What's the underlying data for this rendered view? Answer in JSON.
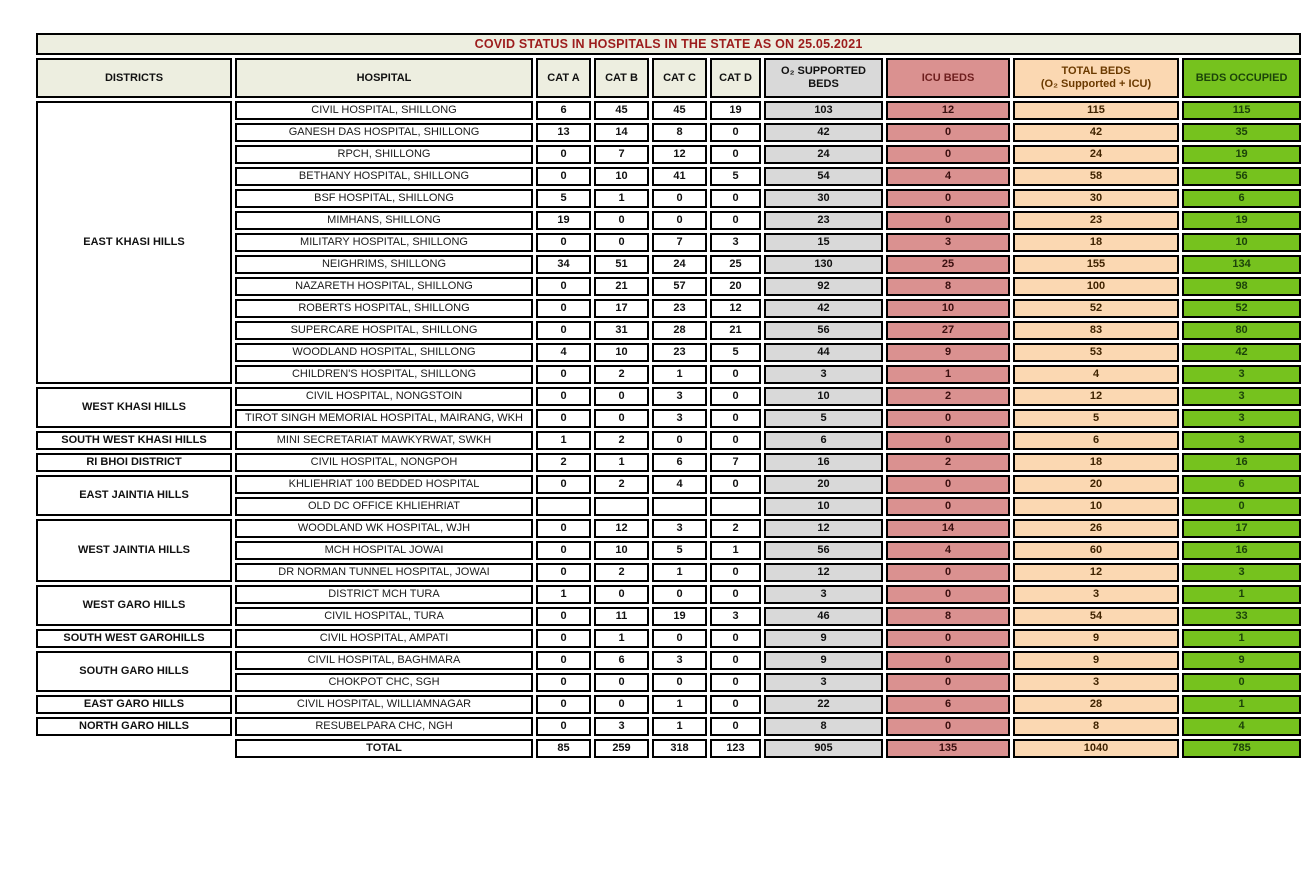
{
  "title": "COVID STATUS IN HOSPITALS IN THE STATE AS ON 25.05.2021",
  "colors": {
    "header_beige": "#EDEEE0",
    "o2_gray": "#D9D9D9",
    "icu_salmon": "#DA9190",
    "total_peach": "#FBD8B2",
    "occupied_green": "#76C21E",
    "title_text": "#9C1C1C",
    "border": "#000000"
  },
  "header": {
    "districts": "DISTRICTS",
    "hospital": "HOSPITAL",
    "cat_a": "CAT A",
    "cat_b": "CAT B",
    "cat_c": "CAT C",
    "cat_d": "CAT D",
    "o2": "O₂ SUPPORTED BEDS",
    "icu": "ICU BEDS",
    "total_line1": "TOTAL BEDS",
    "total_line2": "(O₂ Supported + ICU)",
    "occupied": "BEDS OCCUPIED"
  },
  "groups": [
    {
      "district": "EAST KHASI HILLS",
      "hospitals": [
        {
          "name": "CIVIL HOSPITAL, SHILLONG",
          "cat_a": "6",
          "cat_b": "45",
          "cat_c": "45",
          "cat_d": "19",
          "o2": "103",
          "icu": "12",
          "total": "115",
          "occupied": "115"
        },
        {
          "name": "GANESH DAS HOSPITAL, SHILLONG",
          "cat_a": "13",
          "cat_b": "14",
          "cat_c": "8",
          "cat_d": "0",
          "o2": "42",
          "icu": "0",
          "total": "42",
          "occupied": "35"
        },
        {
          "name": "RPCH, SHILLONG",
          "cat_a": "0",
          "cat_b": "7",
          "cat_c": "12",
          "cat_d": "0",
          "o2": "24",
          "icu": "0",
          "total": "24",
          "occupied": "19"
        },
        {
          "name": "BETHANY HOSPITAL, SHILLONG",
          "cat_a": "0",
          "cat_b": "10",
          "cat_c": "41",
          "cat_d": "5",
          "o2": "54",
          "icu": "4",
          "total": "58",
          "occupied": "56"
        },
        {
          "name": "BSF HOSPITAL, SHILLONG",
          "cat_a": "5",
          "cat_b": "1",
          "cat_c": "0",
          "cat_d": "0",
          "o2": "30",
          "icu": "0",
          "total": "30",
          "occupied": "6"
        },
        {
          "name": "MIMHANS, SHILLONG",
          "cat_a": "19",
          "cat_b": "0",
          "cat_c": "0",
          "cat_d": "0",
          "o2": "23",
          "icu": "0",
          "total": "23",
          "occupied": "19"
        },
        {
          "name": "MILITARY HOSPITAL, SHILLONG",
          "cat_a": "0",
          "cat_b": "0",
          "cat_c": "7",
          "cat_d": "3",
          "o2": "15",
          "icu": "3",
          "total": "18",
          "occupied": "10"
        },
        {
          "name": "NEIGHRIMS, SHILLONG",
          "cat_a": "34",
          "cat_b": "51",
          "cat_c": "24",
          "cat_d": "25",
          "o2": "130",
          "icu": "25",
          "total": "155",
          "occupied": "134"
        },
        {
          "name": "NAZARETH HOSPITAL, SHILLONG",
          "cat_a": "0",
          "cat_b": "21",
          "cat_c": "57",
          "cat_d": "20",
          "o2": "92",
          "icu": "8",
          "total": "100",
          "occupied": "98"
        },
        {
          "name": "ROBERTS HOSPITAL, SHILLONG",
          "cat_a": "0",
          "cat_b": "17",
          "cat_c": "23",
          "cat_d": "12",
          "o2": "42",
          "icu": "10",
          "total": "52",
          "occupied": "52"
        },
        {
          "name": "SUPERCARE HOSPITAL, SHILLONG",
          "cat_a": "0",
          "cat_b": "31",
          "cat_c": "28",
          "cat_d": "21",
          "o2": "56",
          "icu": "27",
          "total": "83",
          "occupied": "80"
        },
        {
          "name": "WOODLAND HOSPITAL, SHILLONG",
          "cat_a": "4",
          "cat_b": "10",
          "cat_c": "23",
          "cat_d": "5",
          "o2": "44",
          "icu": "9",
          "total": "53",
          "occupied": "42"
        },
        {
          "name": "CHILDREN'S HOSPITAL, SHILLONG",
          "cat_a": "0",
          "cat_b": "2",
          "cat_c": "1",
          "cat_d": "0",
          "o2": "3",
          "icu": "1",
          "total": "4",
          "occupied": "3"
        }
      ]
    },
    {
      "district": "WEST KHASI HILLS",
      "hospitals": [
        {
          "name": "CIVIL HOSPITAL, NONGSTOIN",
          "cat_a": "0",
          "cat_b": "0",
          "cat_c": "3",
          "cat_d": "0",
          "o2": "10",
          "icu": "2",
          "total": "12",
          "occupied": "3"
        },
        {
          "name": "TIROT SINGH MEMORIAL HOSPITAL, MAIRANG, WKH",
          "cat_a": "0",
          "cat_b": "0",
          "cat_c": "3",
          "cat_d": "0",
          "o2": "5",
          "icu": "0",
          "total": "5",
          "occupied": "3"
        }
      ]
    },
    {
      "district": "SOUTH WEST KHASI HILLS",
      "hospitals": [
        {
          "name": "MINI SECRETARIAT MAWKYRWAT, SWKH",
          "cat_a": "1",
          "cat_b": "2",
          "cat_c": "0",
          "cat_d": "0",
          "o2": "6",
          "icu": "0",
          "total": "6",
          "occupied": "3"
        }
      ]
    },
    {
      "district": "RI BHOI DISTRICT",
      "hospitals": [
        {
          "name": "CIVIL HOSPITAL, NONGPOH",
          "cat_a": "2",
          "cat_b": "1",
          "cat_c": "6",
          "cat_d": "7",
          "o2": "16",
          "icu": "2",
          "total": "18",
          "occupied": "16"
        }
      ]
    },
    {
      "district": "EAST JAINTIA HILLS",
      "hospitals": [
        {
          "name": "KHLIEHRIAT 100 BEDDED HOSPITAL",
          "cat_a": "0",
          "cat_b": "2",
          "cat_c": "4",
          "cat_d": "0",
          "o2": "20",
          "icu": "0",
          "total": "20",
          "occupied": "6"
        },
        {
          "name": "OLD DC OFFICE KHLIEHRIAT",
          "cat_a": "",
          "cat_b": "",
          "cat_c": "",
          "cat_d": "",
          "o2": "10",
          "icu": "0",
          "total": "10",
          "occupied": "0"
        }
      ]
    },
    {
      "district": "WEST JAINTIA HILLS",
      "hospitals": [
        {
          "name": "WOODLAND WK HOSPITAL, WJH",
          "cat_a": "0",
          "cat_b": "12",
          "cat_c": "3",
          "cat_d": "2",
          "o2": "12",
          "icu": "14",
          "total": "26",
          "occupied": "17"
        },
        {
          "name": "MCH HOSPITAL JOWAI",
          "cat_a": "0",
          "cat_b": "10",
          "cat_c": "5",
          "cat_d": "1",
          "o2": "56",
          "icu": "4",
          "total": "60",
          "occupied": "16"
        },
        {
          "name": "DR NORMAN TUNNEL HOSPITAL, JOWAI",
          "cat_a": "0",
          "cat_b": "2",
          "cat_c": "1",
          "cat_d": "0",
          "o2": "12",
          "icu": "0",
          "total": "12",
          "occupied": "3"
        }
      ]
    },
    {
      "district": "WEST GARO HILLS",
      "hospitals": [
        {
          "name": "DISTRICT MCH TURA",
          "cat_a": "1",
          "cat_b": "0",
          "cat_c": "0",
          "cat_d": "0",
          "o2": "3",
          "icu": "0",
          "total": "3",
          "occupied": "1"
        },
        {
          "name": "CIVIL HOSPITAL, TURA",
          "cat_a": "0",
          "cat_b": "11",
          "cat_c": "19",
          "cat_d": "3",
          "o2": "46",
          "icu": "8",
          "total": "54",
          "occupied": "33"
        }
      ]
    },
    {
      "district": "SOUTH WEST GAROHILLS",
      "hospitals": [
        {
          "name": "CIVIL HOSPITAL, AMPATI",
          "cat_a": "0",
          "cat_b": "1",
          "cat_c": "0",
          "cat_d": "0",
          "o2": "9",
          "icu": "0",
          "total": "9",
          "occupied": "1"
        }
      ]
    },
    {
      "district": "SOUTH GARO HILLS",
      "hospitals": [
        {
          "name": "CIVIL HOSPITAL, BAGHMARA",
          "cat_a": "0",
          "cat_b": "6",
          "cat_c": "3",
          "cat_d": "0",
          "o2": "9",
          "icu": "0",
          "total": "9",
          "occupied": "9"
        },
        {
          "name": "CHOKPOT CHC, SGH",
          "cat_a": "0",
          "cat_b": "0",
          "cat_c": "0",
          "cat_d": "0",
          "o2": "3",
          "icu": "0",
          "total": "3",
          "occupied": "0"
        }
      ]
    },
    {
      "district": "EAST GARO HILLS",
      "hospitals": [
        {
          "name": "CIVIL HOSPITAL, WILLIAMNAGAR",
          "cat_a": "0",
          "cat_b": "0",
          "cat_c": "1",
          "cat_d": "0",
          "o2": "22",
          "icu": "6",
          "total": "28",
          "occupied": "1"
        }
      ]
    },
    {
      "district": "NORTH GARO HILLS",
      "hospitals": [
        {
          "name": "RESUBELPARA CHC, NGH",
          "cat_a": "0",
          "cat_b": "3",
          "cat_c": "1",
          "cat_d": "0",
          "o2": "8",
          "icu": "0",
          "total": "8",
          "occupied": "4"
        }
      ]
    }
  ],
  "total_row": {
    "label": "TOTAL",
    "cat_a": "85",
    "cat_b": "259",
    "cat_c": "318",
    "cat_d": "123",
    "o2": "905",
    "icu": "135",
    "total": "1040",
    "occupied": "785"
  }
}
